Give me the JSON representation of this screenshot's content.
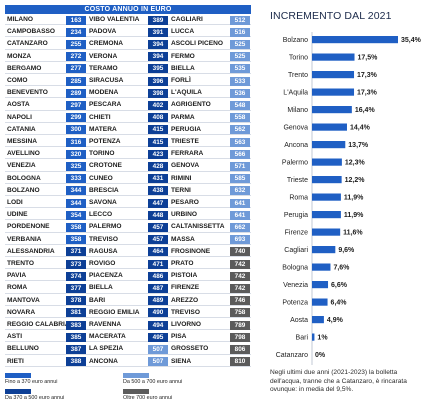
{
  "table": {
    "header": "COSTO ANNUO IN EURO",
    "colors": {
      "lt370": "#1f5fc4",
      "370to500": "#0d3f96",
      "500to700": "#6f9ad8",
      "gt700": "#5b5b5b"
    },
    "columns": [
      [
        {
          "city": "MILANO",
          "value": 163
        },
        {
          "city": "CAMPOBASSO",
          "value": 234
        },
        {
          "city": "CATANZARO",
          "value": 255
        },
        {
          "city": "MONZA",
          "value": 272
        },
        {
          "city": "BERGAMO",
          "value": 277
        },
        {
          "city": "COMO",
          "value": 285
        },
        {
          "city": "BENEVENTO",
          "value": 289
        },
        {
          "city": "AOSTA",
          "value": 297
        },
        {
          "city": "NAPOLI",
          "value": 299
        },
        {
          "city": "CATANIA",
          "value": 300
        },
        {
          "city": "MESSINA",
          "value": 316
        },
        {
          "city": "AVELLINO",
          "value": 320
        },
        {
          "city": "VENEZIA",
          "value": 325
        },
        {
          "city": "BOLOGNA",
          "value": 333
        },
        {
          "city": "BOLZANO",
          "value": 344
        },
        {
          "city": "LODI",
          "value": 344
        },
        {
          "city": "UDINE",
          "value": 354
        },
        {
          "city": "PORDENONE",
          "value": 358
        },
        {
          "city": "VERBANIA",
          "value": 358
        },
        {
          "city": "ALESSANDRIA",
          "value": 371
        },
        {
          "city": "TRENTO",
          "value": 373
        },
        {
          "city": "PAVIA",
          "value": 374
        },
        {
          "city": "ROMA",
          "value": 377
        },
        {
          "city": "MANTOVA",
          "value": 378
        },
        {
          "city": "NOVARA",
          "value": 381
        },
        {
          "city": "REGGIO CALABRIA",
          "value": 383
        },
        {
          "city": "ASTI",
          "value": 385
        },
        {
          "city": "BELLUNO",
          "value": 387
        },
        {
          "city": "RIETI",
          "value": 388
        }
      ],
      [
        {
          "city": "VIBO VALENTIA",
          "value": 389
        },
        {
          "city": "PADOVA",
          "value": 391
        },
        {
          "city": "CREMONA",
          "value": 394
        },
        {
          "city": "VERONA",
          "value": 394
        },
        {
          "city": "TERAMO",
          "value": 395
        },
        {
          "city": "SIRACUSA",
          "value": 396
        },
        {
          "city": "MODENA",
          "value": 398
        },
        {
          "city": "PESCARA",
          "value": 402
        },
        {
          "city": "CHIETI",
          "value": 408
        },
        {
          "city": "MATERA",
          "value": 415
        },
        {
          "city": "POTENZA",
          "value": 415
        },
        {
          "city": "TORINO",
          "value": 423
        },
        {
          "city": "CROTONE",
          "value": 428
        },
        {
          "city": "CUNEO",
          "value": 431
        },
        {
          "city": "BRESCIA",
          "value": 438
        },
        {
          "city": "SAVONA",
          "value": 447
        },
        {
          "city": "LECCO",
          "value": 448
        },
        {
          "city": "PALERMO",
          "value": 457
        },
        {
          "city": "TREVISO",
          "value": 457
        },
        {
          "city": "RAGUSA",
          "value": 464
        },
        {
          "city": "ROVIGO",
          "value": 471
        },
        {
          "city": "PIACENZA",
          "value": 486
        },
        {
          "city": "BIELLA",
          "value": 487
        },
        {
          "city": "BARI",
          "value": 489
        },
        {
          "city": "REGGIO EMILIA",
          "value": 490
        },
        {
          "city": "RAVENNA",
          "value": 494
        },
        {
          "city": "MACERATA",
          "value": 495
        },
        {
          "city": "LA SPEZIA",
          "value": 507
        },
        {
          "city": "ANCONA",
          "value": 507
        }
      ],
      [
        {
          "city": "CAGLIARI",
          "value": 512
        },
        {
          "city": "LUCCA",
          "value": 516
        },
        {
          "city": "ASCOLI PICENO",
          "value": 525
        },
        {
          "city": "FERMO",
          "value": 525
        },
        {
          "city": "BIELLA",
          "value": 535
        },
        {
          "city": "FORLÌ",
          "value": 533
        },
        {
          "city": "L'AQUILA",
          "value": 536
        },
        {
          "city": "AGRIGENTO",
          "value": 548
        },
        {
          "city": "PARMA",
          "value": 558
        },
        {
          "city": "PERUGIA",
          "value": 562
        },
        {
          "city": "TRIESTE",
          "value": 563
        },
        {
          "city": "FERRARA",
          "value": 566
        },
        {
          "city": "GENOVA",
          "value": 571
        },
        {
          "city": "RIMINI",
          "value": 585
        },
        {
          "city": "TERNI",
          "value": 632
        },
        {
          "city": "PESARO",
          "value": 641
        },
        {
          "city": "URBINO",
          "value": 641
        },
        {
          "city": "CALTANISSETTA",
          "value": 662
        },
        {
          "city": "MASSA",
          "value": 693
        },
        {
          "city": "FROSINONE",
          "value": 740
        },
        {
          "city": "PRATO",
          "value": 742
        },
        {
          "city": "PISTOIA",
          "value": 742
        },
        {
          "city": "FIRENZE",
          "value": 742
        },
        {
          "city": "AREZZO",
          "value": 746
        },
        {
          "city": "TREVISO",
          "value": 758
        },
        {
          "city": "LIVORNO",
          "value": 789
        },
        {
          "city": "PISA",
          "value": 798
        },
        {
          "city": "GROSSETO",
          "value": 806
        },
        {
          "city": "SIENA",
          "value": 810
        }
      ]
    ]
  },
  "legend": [
    {
      "label": "Fino a 370 euro annui",
      "color": "#1f5fc4"
    },
    {
      "label": "Da 500 a 700 euro annui",
      "color": "#6f9ad8"
    },
    {
      "label": "Da 370 a 500 euro annui",
      "color": "#0d3f96"
    },
    {
      "label": "Oltre 700 euro annui",
      "color": "#5b5b5b"
    }
  ],
  "chart_data": {
    "type": "bar",
    "orientation": "horizontal",
    "title": "INCREMENTO DAL 2021",
    "categories": [
      "Bolzano",
      "Torino",
      "Trento",
      "L'Aquila",
      "Milano",
      "Genova",
      "Ancona",
      "Palermo",
      "Trieste",
      "Roma",
      "Perugia",
      "Firenze",
      "Cagliari",
      "Bologna",
      "Venezia",
      "Potenza",
      "Aosta",
      "Bari",
      "Catanzaro"
    ],
    "values": [
      35.4,
      17.5,
      17.3,
      17.3,
      16.4,
      14.4,
      13.7,
      12.3,
      12.2,
      11.9,
      11.9,
      11.6,
      9.6,
      7.6,
      6.6,
      6.4,
      4.9,
      1,
      0
    ],
    "value_labels": [
      "35,4%",
      "17,5%",
      "17,3%",
      "17,3%",
      "16,4%",
      "14,4%",
      "13,7%",
      "12,3%",
      "12,2%",
      "11,9%",
      "11,9%",
      "11,6%",
      "9,6%",
      "7,6%",
      "6,6%",
      "6,4%",
      "4,9%",
      "1%",
      "0%"
    ],
    "xlim": [
      0,
      35.4
    ],
    "bar_color": "#1f5fc4",
    "grid": false
  },
  "note": "Negli ultimi due anni (2021-2023) la bolletta dell'acqua, tranne che a Catanzaro, è rincarata ovunque: in media del 9,5%."
}
